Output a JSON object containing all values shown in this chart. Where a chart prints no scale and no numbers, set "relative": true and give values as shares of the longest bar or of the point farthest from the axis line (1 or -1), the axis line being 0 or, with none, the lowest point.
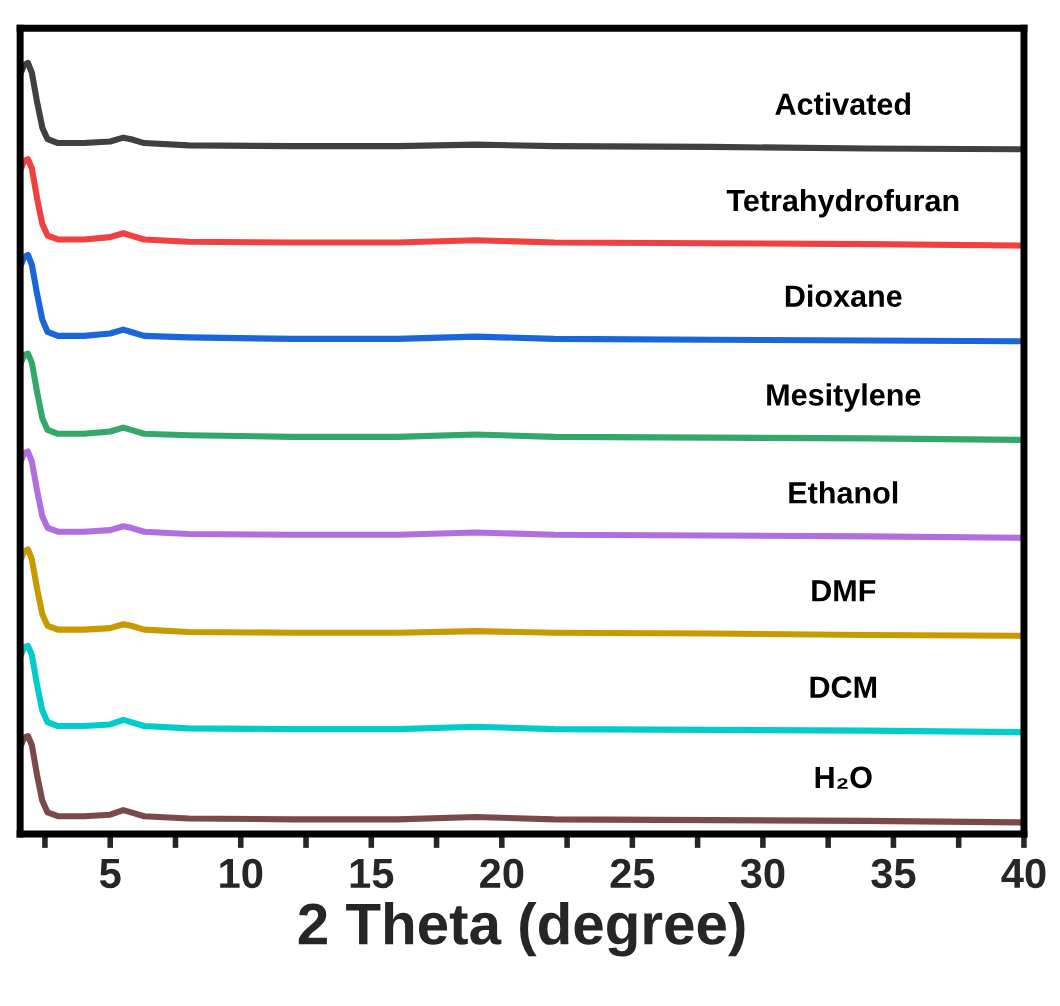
{
  "chart_data": {
    "type": "line",
    "xlabel": "2 Theta (degree)",
    "relative": true,
    "grid": false,
    "legend": false,
    "marker": "none",
    "line_style": "solid",
    "tick_labels": "x",
    "xlim": [
      1.55,
      40
    ],
    "xticks": [
      {
        "value": 2.5,
        "label": null
      },
      5,
      {
        "value": 7.5,
        "label": null
      },
      10,
      {
        "value": 12.5,
        "label": null
      },
      15,
      {
        "value": 17.5,
        "label": null
      },
      20,
      {
        "value": 22.5,
        "label": null
      },
      25,
      {
        "value": 27.5,
        "label": null
      },
      30,
      {
        "value": 32.5,
        "label": null
      },
      35,
      {
        "value": 37.5,
        "label": null
      },
      40
    ],
    "x": [
      1.55,
      1.7,
      1.85,
      2.0,
      2.2,
      2.4,
      2.6,
      3.0,
      4.0,
      5.0,
      5.5,
      5.8,
      6.3,
      8,
      12,
      16,
      19,
      22,
      28,
      34,
      40
    ],
    "series": [
      {
        "name": "Activated",
        "color": "#404040",
        "values": [
          0.985,
          0.997,
          1.0,
          0.987,
          0.949,
          0.916,
          0.901,
          0.896,
          0.896,
          0.898,
          0.903,
          0.901,
          0.896,
          0.893,
          0.892,
          0.892,
          0.894,
          0.892,
          0.891,
          0.889,
          0.888
        ]
      },
      {
        "name": "Tetrahydrofuran",
        "color": "#f04040",
        "values": [
          0.86,
          0.873,
          0.875,
          0.863,
          0.824,
          0.791,
          0.776,
          0.771,
          0.771,
          0.774,
          0.779,
          0.776,
          0.771,
          0.768,
          0.767,
          0.767,
          0.77,
          0.767,
          0.766,
          0.765,
          0.763
        ]
      },
      {
        "name": "Dioxane",
        "color": "#1a66d9",
        "values": [
          0.735,
          0.748,
          0.751,
          0.738,
          0.7,
          0.667,
          0.651,
          0.646,
          0.646,
          0.649,
          0.654,
          0.651,
          0.646,
          0.644,
          0.642,
          0.642,
          0.645,
          0.642,
          0.641,
          0.64,
          0.639
        ]
      },
      {
        "name": "Mesitylene",
        "color": "#33a86a",
        "values": [
          0.608,
          0.621,
          0.623,
          0.611,
          0.573,
          0.539,
          0.524,
          0.519,
          0.519,
          0.522,
          0.527,
          0.524,
          0.519,
          0.517,
          0.515,
          0.515,
          0.518,
          0.515,
          0.514,
          0.513,
          0.511
        ]
      },
      {
        "name": "Ethanol",
        "color": "#b06fe0",
        "values": [
          0.481,
          0.494,
          0.496,
          0.483,
          0.445,
          0.412,
          0.397,
          0.392,
          0.392,
          0.394,
          0.399,
          0.397,
          0.392,
          0.389,
          0.388,
          0.388,
          0.391,
          0.388,
          0.387,
          0.386,
          0.384
        ]
      },
      {
        "name": "DMF",
        "color": "#c99a00",
        "values": [
          0.354,
          0.366,
          0.369,
          0.356,
          0.318,
          0.285,
          0.27,
          0.265,
          0.265,
          0.267,
          0.272,
          0.27,
          0.265,
          0.262,
          0.261,
          0.261,
          0.263,
          0.261,
          0.26,
          0.258,
          0.257
        ]
      },
      {
        "name": "DCM",
        "color": "#00cccc",
        "values": [
          0.229,
          0.242,
          0.244,
          0.232,
          0.193,
          0.16,
          0.145,
          0.14,
          0.14,
          0.142,
          0.148,
          0.145,
          0.14,
          0.137,
          0.136,
          0.136,
          0.139,
          0.136,
          0.135,
          0.134,
          0.132
        ]
      },
      {
        "name": "H₂O",
        "color": "#7a4a4a",
        "values": [
          0.112,
          0.125,
          0.127,
          0.115,
          0.076,
          0.043,
          0.028,
          0.023,
          0.023,
          0.025,
          0.031,
          0.028,
          0.023,
          0.02,
          0.019,
          0.019,
          0.022,
          0.019,
          0.018,
          0.017,
          0.015
        ]
      }
    ]
  }
}
